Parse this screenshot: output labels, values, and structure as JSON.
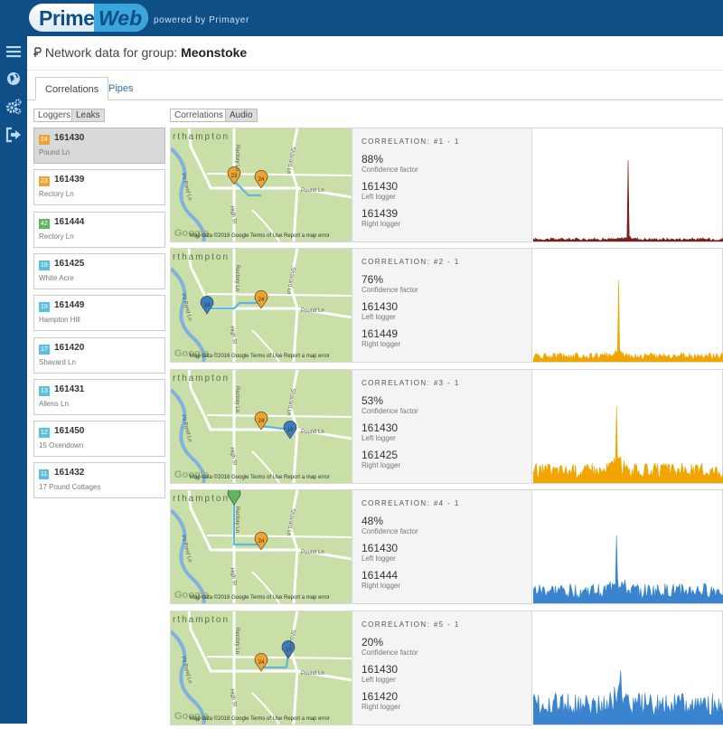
{
  "app": {
    "logo_prime": "Prime",
    "logo_web": "Web",
    "powered_by": "powered by Primayer"
  },
  "sidebar_icons": [
    "menu-icon",
    "globe-icon",
    "gears-icon",
    "logout-icon"
  ],
  "header": {
    "prefix": "Network data for group:",
    "group": "Meonstoke"
  },
  "tabs": [
    {
      "label": "Correlations",
      "active": true
    },
    {
      "label": "Pipes",
      "active": false
    }
  ],
  "left_subtabs": [
    {
      "label": "Loggers",
      "active": true
    },
    {
      "label": "Leaks",
      "active": false
    }
  ],
  "right_subtabs": [
    {
      "label": "Correlations",
      "active": true
    },
    {
      "label": "Audio",
      "active": false
    }
  ],
  "loggers": [
    {
      "badge": "24",
      "badge_color": "#f0a22e",
      "id": "161430",
      "name": "Pound Ln",
      "selected": true
    },
    {
      "badge": "23",
      "badge_color": "#f0a22e",
      "id": "161439",
      "name": "Rectory Ln",
      "selected": false
    },
    {
      "badge": "42",
      "badge_color": "#5cb85c",
      "id": "161444",
      "name": "Rectory Ln",
      "selected": false
    },
    {
      "badge": "19",
      "badge_color": "#5bc0de",
      "id": "161425",
      "name": "White Acre",
      "selected": false
    },
    {
      "badge": "19",
      "badge_color": "#5bc0de",
      "id": "161449",
      "name": "Hampton Hill",
      "selected": false
    },
    {
      "badge": "17",
      "badge_color": "#5bc0de",
      "id": "161420",
      "name": "Shavard Ln",
      "selected": false
    },
    {
      "badge": "13",
      "badge_color": "#5bc0de",
      "id": "161431",
      "name": "Allens Ln",
      "selected": false
    },
    {
      "badge": "12",
      "badge_color": "#5bc0de",
      "id": "161450",
      "name": "15 Oxendown",
      "selected": false
    },
    {
      "badge": "11",
      "badge_color": "#5bc0de",
      "id": "161432",
      "name": "17 Pound Cottages",
      "selected": false
    }
  ],
  "map_labels": {
    "place": "rthampton",
    "rectory": "Rectory Ln",
    "shavard": "Shavard Ln",
    "pound": "Pound Ln",
    "high": "High St",
    "pit": "Pit Pond Ln",
    "google": "Google",
    "attribution": "Map data ©2016 Google    Terms of Use    Report a map error"
  },
  "correlations": [
    {
      "title": "CORRELATION: #1 - 1",
      "confidence": "88%",
      "confidence_label": "Confidence factor",
      "left": "161430",
      "left_label": "Left logger",
      "right": "161439",
      "right_label": "Right logger",
      "color": "#7a1f1a",
      "peak": 0.9,
      "noise": 0.04,
      "peak_x": 0.5
    },
    {
      "title": "CORRELATION: #2 - 1",
      "confidence": "76%",
      "confidence_label": "Confidence factor",
      "left": "161430",
      "left_label": "Left logger",
      "right": "161449",
      "right_label": "Right logger",
      "color": "#f0a500",
      "peak": 0.9,
      "noise": 0.1,
      "peak_x": 0.45
    },
    {
      "title": "CORRELATION: #3 - 1",
      "confidence": "53%",
      "confidence_label": "Confidence factor",
      "left": "161430",
      "left_label": "Left logger",
      "right": "161425",
      "right_label": "Right logger",
      "color": "#f0a500",
      "peak": 0.85,
      "noise": 0.22,
      "peak_x": 0.44
    },
    {
      "title": "CORRELATION: #4 - 1",
      "confidence": "48%",
      "confidence_label": "Confidence factor",
      "left": "161430",
      "left_label": "Left logger",
      "right": "161444",
      "right_label": "Right logger",
      "color": "#3a84cf",
      "peak": 0.75,
      "noise": 0.22,
      "peak_x": 0.44
    },
    {
      "title": "CORRELATION: #5 - 1",
      "confidence": "20%",
      "confidence_label": "Confidence factor",
      "left": "161430",
      "left_label": "Left logger",
      "right": "161420",
      "right_label": "Right logger",
      "color": "#3a84cf",
      "peak": 0.6,
      "noise": 0.35,
      "peak_x": 0.46
    }
  ],
  "colors": {
    "nav": "#0e4f88",
    "accent": "#3aa6dc",
    "map_bg": "#c9dfa7",
    "route": "#5fb6e0",
    "river": "#7fb2e0"
  }
}
